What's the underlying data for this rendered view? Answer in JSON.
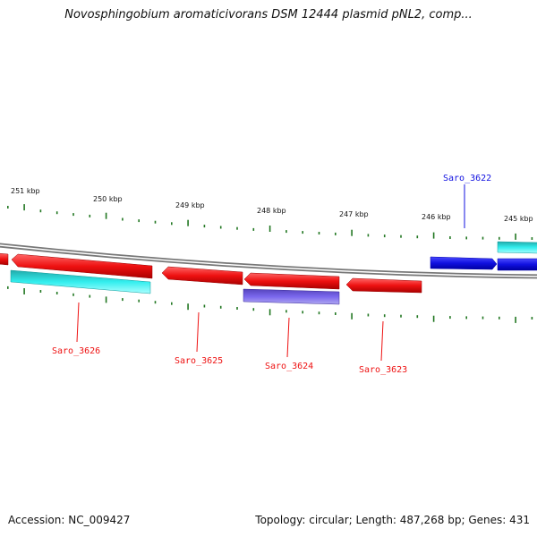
{
  "title": "Novosphingobium aromaticivorans DSM 12444 plasmid pNL2, comp...",
  "footer": {
    "accession": "Accession: NC_009427",
    "stats": "Topology: circular; Length: 487,268 bp; Genes: 431"
  },
  "colors": {
    "forward_gene": "#1010e0",
    "reverse_gene": "#ee1111",
    "rna_forward": "#22dddd",
    "rna_reverse": "#22dddd",
    "purple_feature": "#6a5acd",
    "ticks": "#227722",
    "backbone": "#888888"
  },
  "scale": {
    "unit": "kbp",
    "labels": [
      "251 kbp",
      "250 kbp",
      "249 kbp",
      "248 kbp",
      "247 kbp",
      "246 kbp",
      "245 kbp"
    ]
  },
  "genes": [
    {
      "name": "Saro_3622",
      "strand": "+"
    },
    {
      "name": "Saro_3623",
      "strand": "-"
    },
    {
      "name": "Saro_3624",
      "strand": "-"
    },
    {
      "name": "Saro_3625",
      "strand": "-"
    },
    {
      "name": "Saro_3626",
      "strand": "-"
    }
  ]
}
